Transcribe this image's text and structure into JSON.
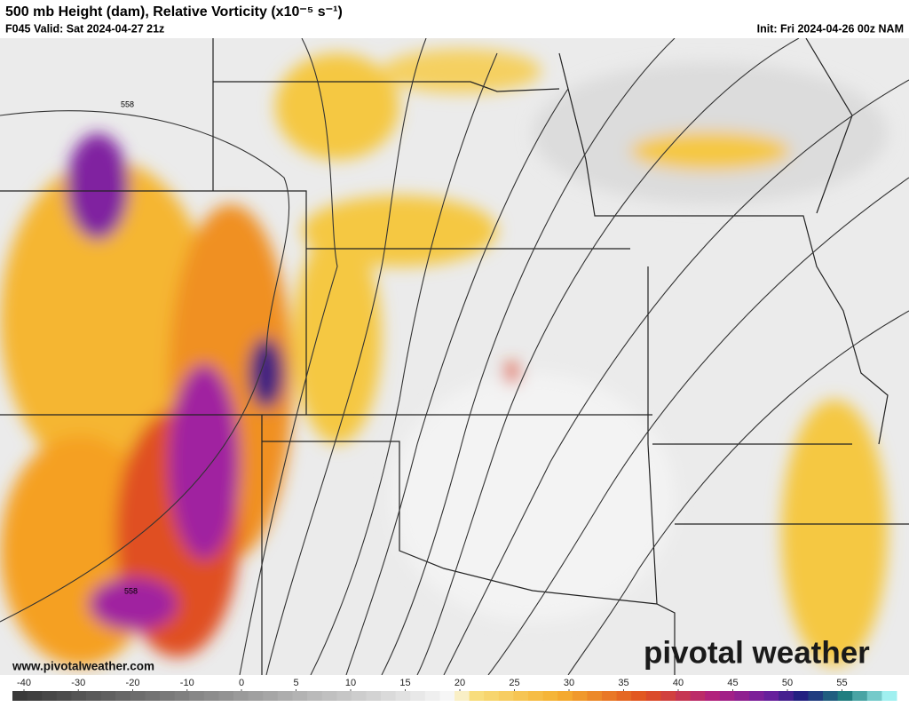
{
  "header": {
    "title": "500 mb Height (dam), Relative Vorticity (x10⁻⁵ s⁻¹)",
    "valid": "F045 Valid: Sat 2024-04-27 21z",
    "init": "Init: Fri 2024-04-26 00z NAM"
  },
  "map": {
    "contour_labels": [
      "558",
      "558"
    ],
    "watermark": "www.pivotalweather.com",
    "logo": "pivotal weather"
  },
  "colorbar": {
    "ticks": [
      -40,
      -30,
      -20,
      -10,
      0,
      5,
      10,
      15,
      20,
      25,
      30,
      35,
      40,
      45,
      50,
      55
    ]
  }
}
